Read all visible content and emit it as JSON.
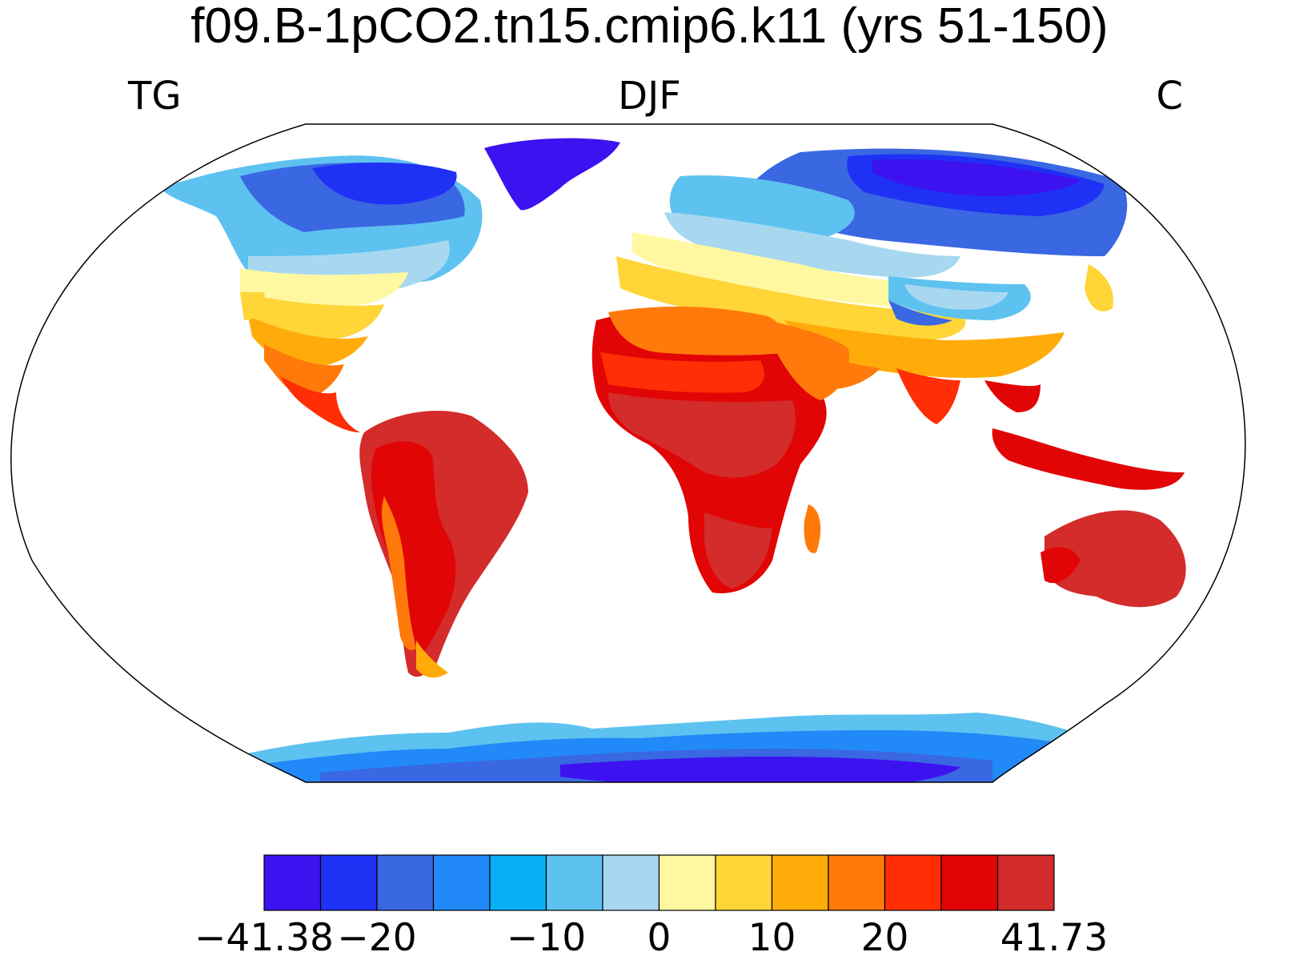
{
  "title": "f09.B-1pCO2.tn15.cmip6.k11 (yrs 51-150)",
  "labels": {
    "left": "TG",
    "center": "DJF",
    "right": "C"
  },
  "colorbar": {
    "colors": [
      "#3d12f0",
      "#1f31f5",
      "#3a67e2",
      "#218af8",
      "#08b0f5",
      "#5ec2f0",
      "#a8d8f0",
      "#fff8a0",
      "#ffd538",
      "#ffab0a",
      "#ff7a0a",
      "#ff2e05",
      "#e20505",
      "#d42b2b"
    ],
    "tick_labels": [
      "−41.38",
      "−20",
      "−10",
      "0",
      "10",
      "20",
      "41.73"
    ],
    "min": -41.38,
    "max": 41.73,
    "tick_boundary_index": [
      0,
      2,
      5,
      7,
      9,
      11,
      14
    ]
  },
  "map": {
    "projection": "Robinson",
    "field": "TG",
    "season": "DJF",
    "units": "C"
  }
}
